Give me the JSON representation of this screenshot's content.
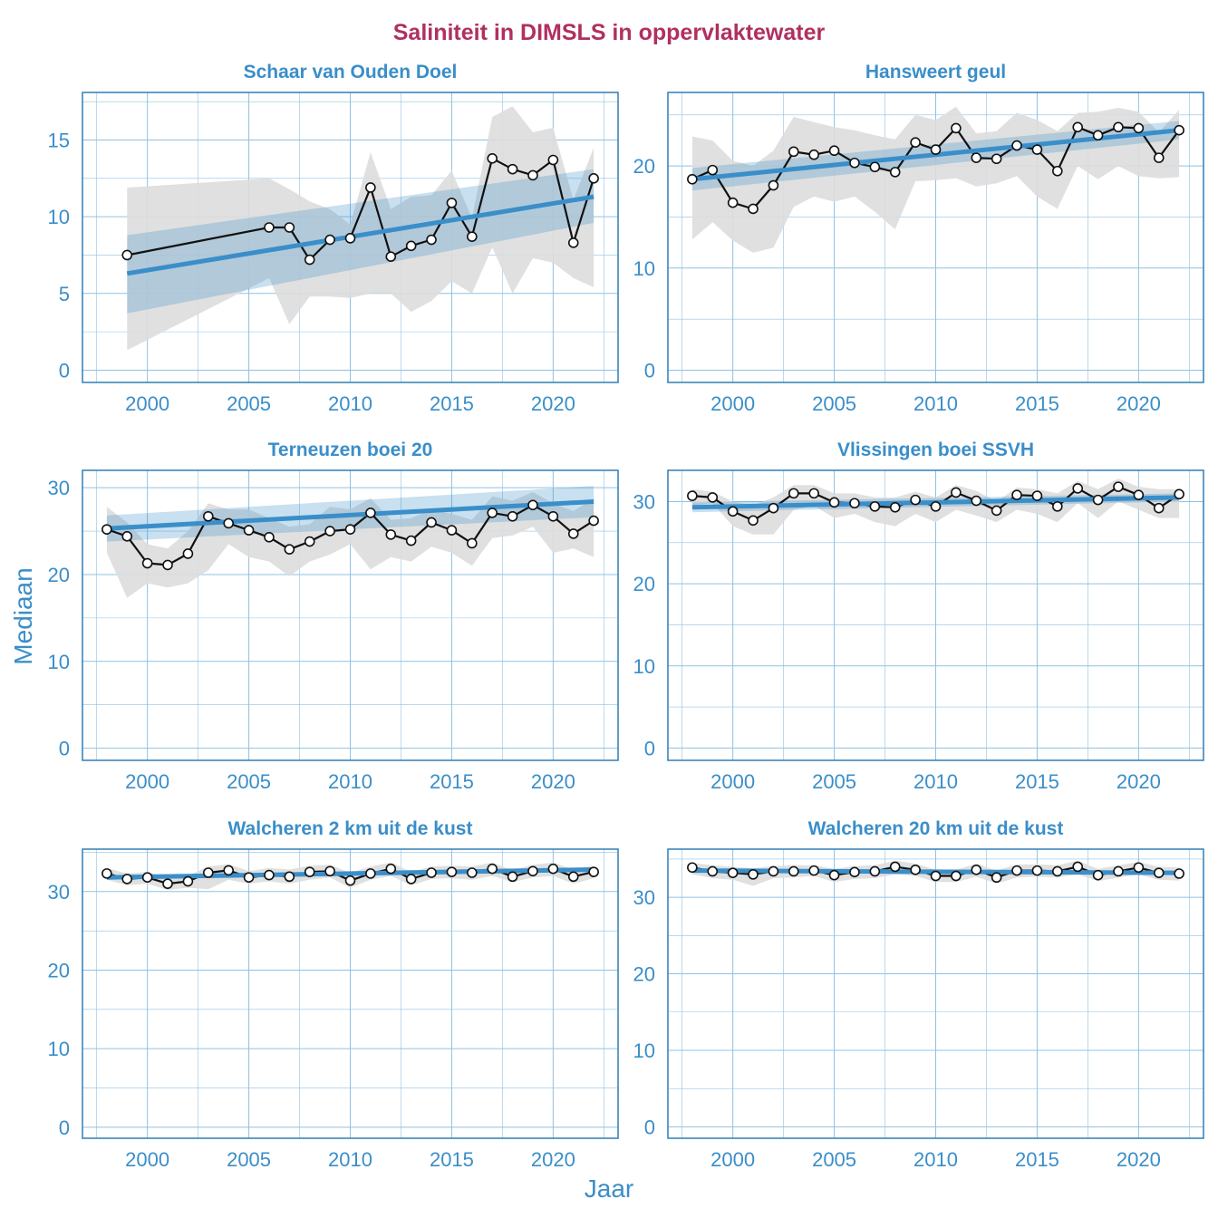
{
  "title": "Saliniteit in DIMSLS in oppervlaktewater",
  "xlabel": "Jaar",
  "ylabel": "Mediaan",
  "colors": {
    "title": "#b03060",
    "axis": "#3a8ec9",
    "trend": "#3a8ec9",
    "band": "#dddddd",
    "grid": "#8fc1e3",
    "frame": "#2f7fb5"
  },
  "chart_data": [
    {
      "type": "line",
      "title": "Schaar van Ouden Doel",
      "xlim": [
        1996.8,
        2023.2
      ],
      "ylim": [
        -0.8,
        18.1
      ],
      "xticks": [
        2000,
        2005,
        2010,
        2015,
        2020
      ],
      "yticks": [
        0,
        5,
        10,
        15
      ],
      "ygrid_minor": [
        2.5,
        7.5,
        12.5,
        17.5
      ],
      "grid": true,
      "series": [
        {
          "x": [
            1999,
            2006,
            2007,
            2008,
            2009,
            2010,
            2011,
            2012,
            2013,
            2014,
            2015,
            2016,
            2017,
            2018,
            2019,
            2020,
            2021,
            2022
          ],
          "y": [
            7.5,
            9.3,
            9.3,
            7.2,
            8.5,
            8.6,
            11.9,
            7.4,
            8.1,
            8.5,
            10.9,
            8.7,
            13.8,
            13.1,
            12.7,
            13.7,
            8.3,
            12.5
          ]
        }
      ],
      "band": {
        "x": [
          1999,
          2006,
          2007,
          2008,
          2009,
          2010,
          2011,
          2012,
          2013,
          2014,
          2015,
          2016,
          2017,
          2018,
          2019,
          2020,
          2021,
          2022
        ],
        "lower": [
          1.3,
          6.0,
          3.0,
          4.8,
          4.8,
          4.7,
          5.0,
          5.0,
          3.8,
          4.5,
          5.8,
          5.0,
          8.0,
          5.0,
          7.3,
          7.0,
          6.0,
          5.4
        ],
        "upper": [
          11.9,
          12.5,
          11.8,
          11.0,
          10.5,
          9.5,
          14.2,
          10.5,
          11.3,
          11.4,
          13.0,
          9.9,
          16.5,
          17.2,
          15.5,
          15.8,
          11.1,
          14.5
        ]
      },
      "trend": {
        "x": [
          1999,
          2022
        ],
        "y": [
          6.3,
          11.3
        ],
        "lower": [
          3.7,
          9.6
        ],
        "upper": [
          8.8,
          13.1
        ]
      }
    },
    {
      "type": "line",
      "title": "Hansweert geul",
      "xlim": [
        1996.8,
        2023.2
      ],
      "ylim": [
        -1.2,
        27.2
      ],
      "xticks": [
        2000,
        2005,
        2010,
        2015,
        2020
      ],
      "yticks": [
        0,
        10,
        20
      ],
      "ygrid_minor": [
        5,
        15,
        25
      ],
      "grid": true,
      "series": [
        {
          "x": [
            1998,
            1999,
            2000,
            2001,
            2002,
            2003,
            2004,
            2005,
            2006,
            2007,
            2008,
            2009,
            2010,
            2011,
            2012,
            2013,
            2014,
            2015,
            2016,
            2017,
            2018,
            2019,
            2020,
            2021,
            2022
          ],
          "y": [
            18.7,
            19.6,
            16.4,
            15.8,
            18.1,
            21.4,
            21.1,
            21.5,
            20.3,
            19.9,
            19.4,
            22.3,
            21.6,
            23.7,
            20.8,
            20.7,
            22.0,
            21.6,
            19.5,
            23.8,
            23.0,
            23.8,
            23.7,
            20.8,
            23.5
          ]
        }
      ],
      "band": {
        "x": [
          1998,
          1999,
          2000,
          2001,
          2002,
          2003,
          2004,
          2005,
          2006,
          2007,
          2008,
          2009,
          2010,
          2011,
          2012,
          2013,
          2014,
          2015,
          2016,
          2017,
          2018,
          2019,
          2020,
          2021,
          2022
        ],
        "lower": [
          12.8,
          14.5,
          12.7,
          11.5,
          12.0,
          16.0,
          17.0,
          16.5,
          17.0,
          15.5,
          13.8,
          18.5,
          18.6,
          18.8,
          18.0,
          18.3,
          19.0,
          17.0,
          15.8,
          20.0,
          18.7,
          20.0,
          19.0,
          18.8,
          18.9
        ],
        "upper": [
          22.9,
          22.5,
          20.5,
          20.0,
          21.5,
          24.8,
          24.3,
          23.8,
          23.5,
          23.0,
          22.6,
          25.0,
          24.5,
          25.8,
          23.2,
          23.4,
          25.2,
          24.5,
          23.4,
          25.2,
          25.3,
          25.7,
          25.3,
          23.3,
          25.5
        ]
      },
      "trend": {
        "x": [
          1998,
          2022
        ],
        "y": [
          18.7,
          23.5
        ],
        "lower": [
          17.6,
          22.6
        ],
        "upper": [
          19.8,
          24.4
        ]
      }
    },
    {
      "type": "line",
      "title": "Terneuzen boei 20",
      "xlim": [
        1996.8,
        2023.2
      ],
      "ylim": [
        -1.4,
        32.0
      ],
      "xticks": [
        2000,
        2005,
        2010,
        2015,
        2020
      ],
      "yticks": [
        0,
        10,
        20,
        30
      ],
      "ygrid_minor": [
        5,
        15,
        25
      ],
      "grid": true,
      "series": [
        {
          "x": [
            1998,
            1999,
            2000,
            2001,
            2002,
            2003,
            2004,
            2005,
            2006,
            2007,
            2008,
            2009,
            2010,
            2011,
            2012,
            2013,
            2014,
            2015,
            2016,
            2017,
            2018,
            2019,
            2020,
            2021,
            2022
          ],
          "y": [
            25.2,
            24.4,
            21.3,
            21.1,
            22.4,
            26.7,
            25.9,
            25.1,
            24.3,
            22.9,
            23.8,
            25.0,
            25.2,
            27.1,
            24.6,
            23.9,
            26.0,
            25.1,
            23.6,
            27.1,
            26.7,
            28.0,
            26.7,
            24.7,
            26.2
          ]
        }
      ],
      "band": {
        "x": [
          1998,
          1999,
          2000,
          2001,
          2002,
          2003,
          2004,
          2005,
          2006,
          2007,
          2008,
          2009,
          2010,
          2011,
          2012,
          2013,
          2014,
          2015,
          2016,
          2017,
          2018,
          2019,
          2020,
          2021,
          2022
        ],
        "lower": [
          22.5,
          17.3,
          19.0,
          18.5,
          19.0,
          20.5,
          23.5,
          22.0,
          21.5,
          19.8,
          21.5,
          22.3,
          23.5,
          20.6,
          22.0,
          21.5,
          23.2,
          22.5,
          21.0,
          24.2,
          24.5,
          25.5,
          22.5,
          23.0,
          22.0
        ],
        "upper": [
          27.8,
          26.0,
          23.5,
          23.0,
          25.0,
          28.2,
          27.5,
          27.5,
          26.5,
          25.5,
          25.8,
          27.8,
          27.5,
          28.8,
          26.3,
          26.5,
          27.5,
          27.0,
          26.3,
          29.0,
          28.5,
          29.5,
          28.2,
          27.3,
          28.8
        ]
      },
      "trend": {
        "x": [
          1998,
          2022
        ],
        "y": [
          25.3,
          28.4
        ],
        "lower": [
          23.8,
          26.6
        ],
        "upper": [
          26.8,
          30.2
        ]
      }
    },
    {
      "type": "line",
      "title": "Vlissingen boei SSVH",
      "xlim": [
        1996.8,
        2023.2
      ],
      "ylim": [
        -1.5,
        33.8
      ],
      "xticks": [
        2000,
        2005,
        2010,
        2015,
        2020
      ],
      "yticks": [
        0,
        10,
        20,
        30
      ],
      "ygrid_minor": [
        5,
        15,
        25
      ],
      "grid": true,
      "series": [
        {
          "x": [
            1998,
            1999,
            2000,
            2001,
            2002,
            2003,
            2004,
            2005,
            2006,
            2007,
            2008,
            2009,
            2010,
            2011,
            2012,
            2013,
            2014,
            2015,
            2016,
            2017,
            2018,
            2019,
            2020,
            2021,
            2022
          ],
          "y": [
            30.7,
            30.5,
            28.8,
            27.7,
            29.2,
            31.0,
            31.0,
            29.9,
            29.8,
            29.4,
            29.3,
            30.2,
            29.4,
            31.1,
            30.1,
            28.9,
            30.8,
            30.7,
            29.4,
            31.6,
            30.2,
            31.8,
            30.8,
            29.2,
            30.9
          ]
        }
      ],
      "band": {
        "x": [
          1998,
          1999,
          2000,
          2001,
          2002,
          2003,
          2004,
          2005,
          2006,
          2007,
          2008,
          2009,
          2010,
          2011,
          2012,
          2013,
          2014,
          2015,
          2016,
          2017,
          2018,
          2019,
          2020,
          2021,
          2022
        ],
        "lower": [
          29.5,
          29.8,
          27.0,
          26.0,
          26.0,
          29.0,
          29.5,
          28.0,
          28.5,
          27.5,
          27.0,
          28.5,
          27.5,
          29.0,
          28.3,
          27.5,
          29.0,
          28.5,
          27.5,
          29.8,
          28.0,
          30.0,
          29.0,
          28.0,
          28.0
        ],
        "upper": [
          31.5,
          31.2,
          30.0,
          29.5,
          30.5,
          32.0,
          32.0,
          31.0,
          31.0,
          30.5,
          30.5,
          31.2,
          30.5,
          32.0,
          31.3,
          30.0,
          31.7,
          31.5,
          31.0,
          32.5,
          31.5,
          32.8,
          31.8,
          31.5,
          31.5
        ]
      },
      "trend": {
        "x": [
          1998,
          2022
        ],
        "y": [
          29.3,
          30.5
        ],
        "lower": [
          28.7,
          30.0
        ],
        "upper": [
          29.9,
          31.0
        ]
      }
    },
    {
      "type": "line",
      "title": "Walcheren 2 km uit de kust",
      "xlim": [
        1996.8,
        2023.2
      ],
      "ylim": [
        -1.4,
        35.4
      ],
      "xticks": [
        2000,
        2005,
        2010,
        2015,
        2020
      ],
      "yticks": [
        0,
        10,
        20,
        30
      ],
      "ygrid_minor": [
        5,
        15,
        25,
        35
      ],
      "grid": true,
      "series": [
        {
          "x": [
            1998,
            1999,
            2000,
            2001,
            2002,
            2003,
            2004,
            2005,
            2006,
            2007,
            2008,
            2009,
            2010,
            2011,
            2012,
            2013,
            2014,
            2015,
            2016,
            2017,
            2018,
            2019,
            2020,
            2021,
            2022
          ],
          "y": [
            32.3,
            31.6,
            31.8,
            31.0,
            31.3,
            32.4,
            32.7,
            31.8,
            32.1,
            31.9,
            32.5,
            32.6,
            31.4,
            32.3,
            32.9,
            31.6,
            32.4,
            32.5,
            32.4,
            32.9,
            31.9,
            32.6,
            32.9,
            31.9,
            32.5
          ]
        }
      ],
      "band": {
        "x": [
          1998,
          1999,
          2000,
          2001,
          2002,
          2003,
          2004,
          2005,
          2006,
          2007,
          2008,
          2009,
          2010,
          2011,
          2012,
          2013,
          2014,
          2015,
          2016,
          2017,
          2018,
          2019,
          2020,
          2021,
          2022
        ],
        "lower": [
          31.5,
          30.8,
          31.0,
          30.2,
          30.5,
          30.3,
          31.5,
          31.0,
          31.3,
          31.0,
          31.5,
          31.8,
          30.5,
          31.5,
          32.0,
          30.8,
          31.6,
          31.7,
          31.5,
          32.0,
          31.2,
          31.8,
          32.0,
          31.0,
          31.7
        ],
        "upper": [
          33.0,
          32.3,
          32.5,
          31.8,
          32.0,
          33.2,
          33.5,
          32.6,
          33.0,
          32.8,
          33.3,
          33.4,
          32.4,
          33.2,
          33.7,
          32.5,
          33.2,
          33.3,
          33.2,
          33.7,
          32.7,
          33.4,
          33.7,
          32.8,
          33.3
        ]
      },
      "trend": {
        "x": [
          1998,
          2022
        ],
        "y": [
          31.8,
          32.8
        ],
        "lower": [
          31.5,
          32.5
        ],
        "upper": [
          32.1,
          33.1
        ]
      }
    },
    {
      "type": "line",
      "title": "Walcheren 20 km uit de kust",
      "xlim": [
        1996.8,
        2023.2
      ],
      "ylim": [
        -1.5,
        36.3
      ],
      "xticks": [
        2000,
        2005,
        2010,
        2015,
        2020
      ],
      "yticks": [
        0,
        10,
        20,
        30
      ],
      "ygrid_minor": [
        5,
        15,
        25,
        35
      ],
      "grid": true,
      "series": [
        {
          "x": [
            1998,
            1999,
            2000,
            2001,
            2002,
            2003,
            2004,
            2005,
            2006,
            2007,
            2008,
            2009,
            2010,
            2011,
            2012,
            2013,
            2014,
            2015,
            2016,
            2017,
            2018,
            2019,
            2020,
            2021,
            2022
          ],
          "y": [
            33.9,
            33.4,
            33.2,
            33.0,
            33.4,
            33.4,
            33.5,
            32.9,
            33.3,
            33.4,
            34.0,
            33.6,
            32.8,
            32.8,
            33.6,
            32.6,
            33.5,
            33.5,
            33.4,
            34.0,
            32.9,
            33.4,
            33.9,
            33.2,
            33.1
          ]
        }
      ],
      "band": {
        "x": [
          1998,
          1999,
          2000,
          2001,
          2002,
          2003,
          2004,
          2005,
          2006,
          2007,
          2008,
          2009,
          2010,
          2011,
          2012,
          2013,
          2014,
          2015,
          2016,
          2017,
          2018,
          2019,
          2020,
          2021,
          2022
        ],
        "lower": [
          33.0,
          32.5,
          32.3,
          31.5,
          32.5,
          32.6,
          32.8,
          32.0,
          32.4,
          32.5,
          33.0,
          32.8,
          32.0,
          32.0,
          32.7,
          31.8,
          32.6,
          32.7,
          32.6,
          33.0,
          32.1,
          32.6,
          33.0,
          32.3,
          32.2
        ],
        "upper": [
          34.5,
          34.2,
          34.0,
          33.8,
          34.1,
          34.2,
          34.2,
          33.7,
          34.1,
          34.2,
          34.8,
          34.4,
          33.6,
          33.6,
          34.4,
          33.5,
          34.3,
          34.3,
          34.2,
          34.8,
          33.7,
          34.2,
          34.6,
          34.0,
          33.9
        ]
      },
      "trend": {
        "x": [
          1998,
          2022
        ],
        "y": [
          33.5,
          33.2
        ],
        "lower": [
          33.3,
          33.0
        ],
        "upper": [
          33.7,
          33.4
        ]
      }
    }
  ]
}
